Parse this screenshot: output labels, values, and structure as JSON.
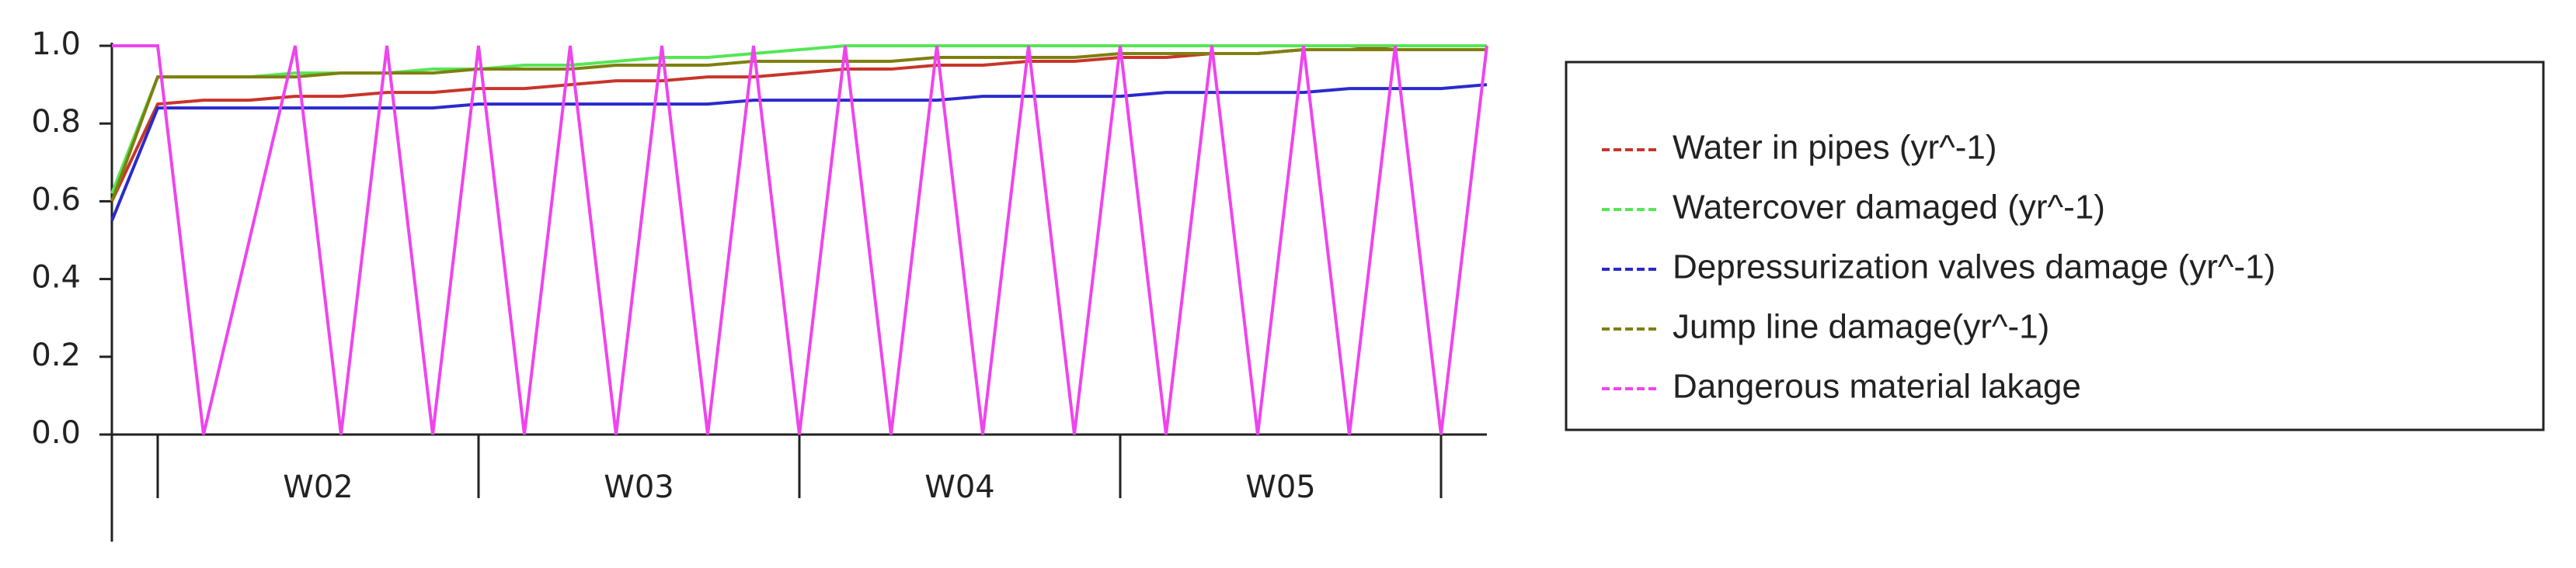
{
  "chart_data": {
    "type": "line",
    "x": [
      0,
      1,
      2,
      3,
      4,
      5,
      6,
      7,
      8,
      9,
      10,
      11,
      12,
      13,
      14,
      15,
      16,
      17,
      18,
      19,
      20,
      21,
      22,
      23,
      24,
      25,
      26,
      27,
      28,
      29,
      30
    ],
    "xlim": [
      0,
      30
    ],
    "xticks": [
      1,
      8,
      15,
      22,
      29
    ],
    "week_labels": [
      "W02",
      "W03",
      "W04",
      "W05"
    ],
    "ylim": [
      0,
      1
    ],
    "yticks": [
      {
        "value": 0,
        "label": "0.0"
      },
      0.2,
      0.4,
      0.6,
      0.8,
      {
        "value": 1,
        "label": "1.0"
      }
    ],
    "series": [
      {
        "name": "Water in pipes (yr^-1)",
        "color": "#c8352a",
        "values": [
          0.6,
          0.85,
          0.86,
          0.86,
          0.87,
          0.87,
          0.88,
          0.88,
          0.89,
          0.89,
          0.9,
          0.91,
          0.91,
          0.92,
          0.92,
          0.93,
          0.94,
          0.94,
          0.95,
          0.95,
          0.96,
          0.96,
          0.97,
          0.97,
          0.98,
          0.98,
          0.99,
          0.99,
          1,
          1,
          1
        ]
      },
      {
        "name": "Watercover damaged (yr^-1)",
        "color": "#55e655",
        "values": [
          0.62,
          0.92,
          0.92,
          0.92,
          0.93,
          0.93,
          0.93,
          0.94,
          0.94,
          0.95,
          0.95,
          0.96,
          0.97,
          0.97,
          0.98,
          0.99,
          1,
          1,
          1,
          1,
          1,
          1,
          1,
          1,
          1,
          1,
          1,
          1,
          1,
          1,
          1
        ]
      },
      {
        "name": "Depressurization valves damage (yr^-1)",
        "color": "#2a2acc",
        "values": [
          0.55,
          0.84,
          0.84,
          0.84,
          0.84,
          0.84,
          0.84,
          0.84,
          0.85,
          0.85,
          0.85,
          0.85,
          0.85,
          0.85,
          0.86,
          0.86,
          0.86,
          0.86,
          0.86,
          0.87,
          0.87,
          0.87,
          0.87,
          0.88,
          0.88,
          0.88,
          0.88,
          0.89,
          0.89,
          0.89,
          0.9
        ]
      },
      {
        "name": "Jump line damage(yr^-1)",
        "color": "#7f7f10",
        "values": [
          0.6,
          0.92,
          0.92,
          0.92,
          0.92,
          0.93,
          0.93,
          0.93,
          0.94,
          0.94,
          0.94,
          0.95,
          0.95,
          0.95,
          0.96,
          0.96,
          0.96,
          0.96,
          0.97,
          0.97,
          0.97,
          0.97,
          0.98,
          0.98,
          0.98,
          0.98,
          0.99,
          0.99,
          0.99,
          0.99,
          0.99
        ]
      },
      {
        "name": "Dangerous material lakage",
        "color": "#ee44ee",
        "values": [
          1,
          1,
          0,
          0.5,
          1,
          0,
          1,
          0,
          1,
          0,
          1,
          0,
          1,
          0,
          1,
          0,
          1,
          0,
          1,
          0,
          1,
          0,
          1,
          0,
          1,
          0,
          1,
          0,
          1,
          0,
          1
        ]
      }
    ]
  }
}
